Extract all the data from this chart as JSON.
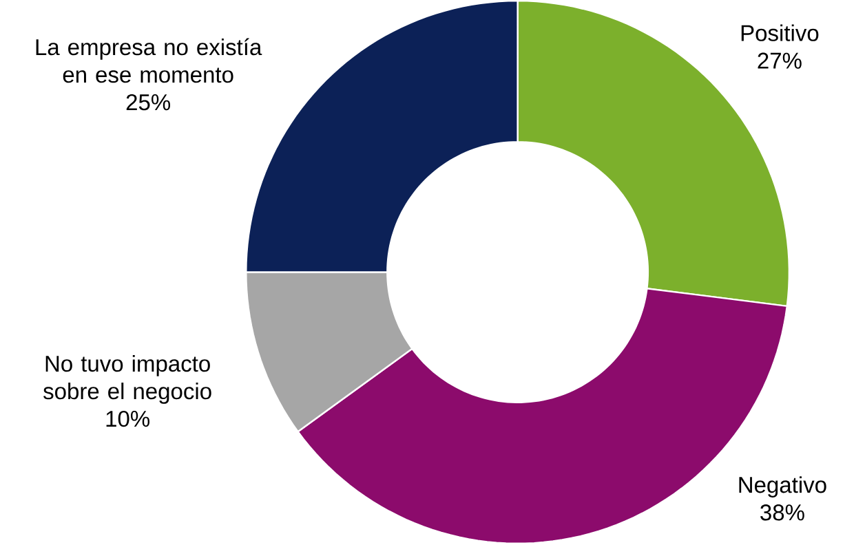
{
  "chart_data": {
    "type": "donut",
    "categories": [
      "Positivo",
      "Negativo",
      "No tuvo impacto sobre el negocio",
      "La empresa no existía en ese momento"
    ],
    "values": [
      27,
      38,
      10,
      25
    ],
    "value_labels": [
      "27%",
      "38%",
      "10%",
      "25%"
    ],
    "colors": [
      "#7cb02c",
      "#8c0b6c",
      "#a6a6a6",
      "#0c2157"
    ]
  }
}
